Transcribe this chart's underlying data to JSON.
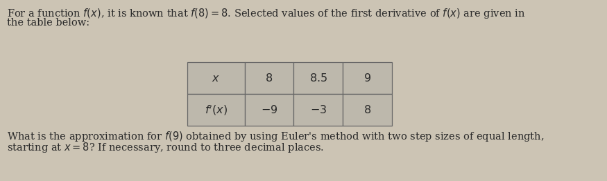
{
  "background_color": "#ccc4b4",
  "intro_text_line1": "For a function $f(x)$, it is known that $f(8) = 8$. Selected values of the first derivative of $f(x)$ are given in",
  "intro_text_line2": "the table below:",
  "question_text_line1": "What is the approximation for $f(9)$ obtained by using Euler's method with two step sizes of equal length,",
  "question_text_line2": "starting at $x = 8$? If necessary, round to three decimal places.",
  "table_x_label": "$x$",
  "table_x_values": [
    "$8$",
    "$8.5$",
    "$9$"
  ],
  "table_fp_label": "$f'(x)$",
  "table_fp_values": [
    "$-9$",
    "$-3$",
    "$8$"
  ],
  "font_size_text": 10.5,
  "font_size_table": 11.5,
  "text_color": "#2a2a2a",
  "table_face_color": "#bdb8ac",
  "table_edge_color": "#666666"
}
